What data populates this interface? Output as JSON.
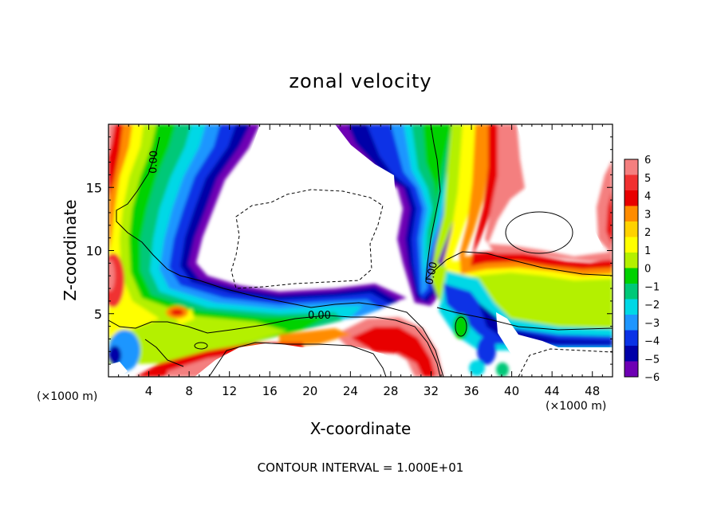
{
  "chart_data": {
    "type": "heatmap",
    "title": "zonal velocity",
    "xlabel": "X-coordinate",
    "ylabel": "Z-coordinate",
    "x_unit_label": "(×1000 m)",
    "x_ticks": [
      4,
      8,
      12,
      16,
      20,
      24,
      28,
      32,
      36,
      40,
      44,
      48
    ],
    "y_ticks": [
      5,
      10,
      15
    ],
    "xlim": [
      0,
      50
    ],
    "ylim": [
      0,
      20
    ],
    "colorbar": {
      "levels": [
        6,
        5,
        4,
        3,
        2,
        1,
        0,
        -1,
        -2,
        -3,
        -4,
        -5,
        -6
      ],
      "labels": [
        "6",
        "5",
        "4",
        "3",
        "2",
        "1",
        "0",
        "−1",
        "−2",
        "−3",
        "−4",
        "−5",
        "−6"
      ],
      "colors": [
        "#f47f7f",
        "#f03030",
        "#e80000",
        "#ff8c00",
        "#ffd200",
        "#ffff00",
        "#b4f000",
        "#00d200",
        "#00c878",
        "#00d8e6",
        "#1e96ff",
        "#0a32e6",
        "#0000a8",
        "#6e00b4"
      ]
    },
    "contour_label": "0.00",
    "footer": "CONTOUR INTERVAL = 1.000E+01"
  }
}
